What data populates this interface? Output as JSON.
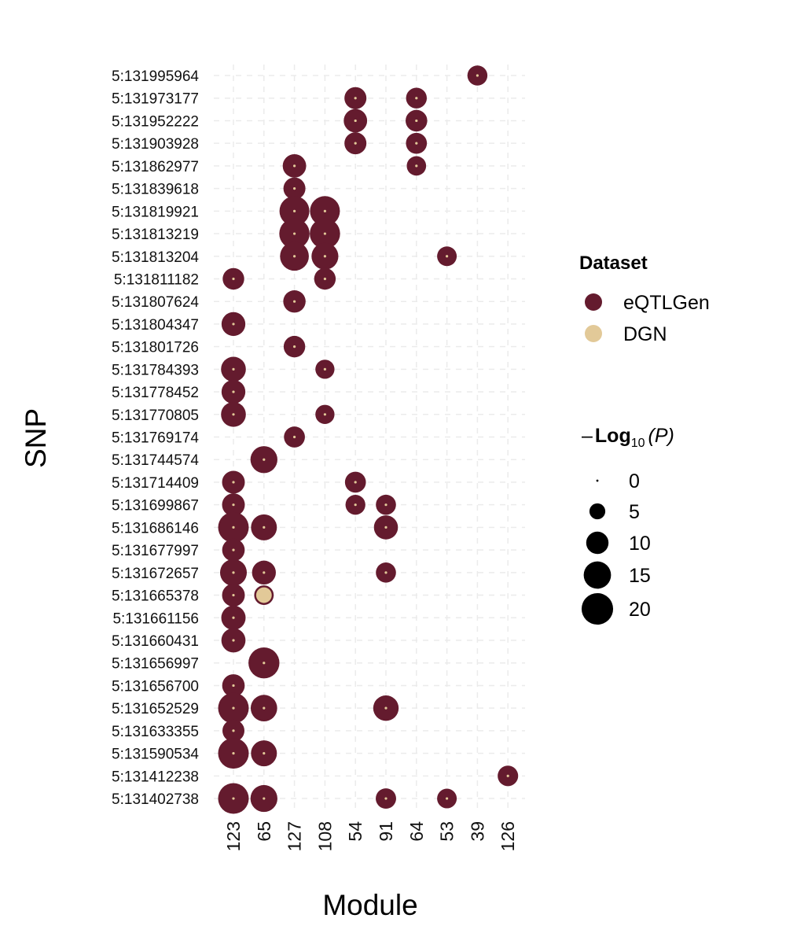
{
  "chart_data": {
    "type": "scatter",
    "xlabel": "Module",
    "ylabel": "SNP",
    "x_categories": [
      "123",
      "65",
      "127",
      "108",
      "54",
      "91",
      "64",
      "53",
      "39",
      "126"
    ],
    "y_categories_top_to_bottom": [
      "5:131995964",
      "5:131973177",
      "5:131952222",
      "5:131903928",
      "5:131862977",
      "5:131839618",
      "5:131819921",
      "5:131813219",
      "5:131813204",
      "5:131811182",
      "5:131807624",
      "5:131804347",
      "5:131801726",
      "5:131784393",
      "5:131778452",
      "5:131770805",
      "5:131769174",
      "5:131744574",
      "5:131714409",
      "5:131699867",
      "5:131686146",
      "5:131677997",
      "5:131672657",
      "5:131665378",
      "5:131661156",
      "5:131660431",
      "5:131656997",
      "5:131656700",
      "5:131652529",
      "5:131633355",
      "5:131590534",
      "5:131412238",
      "5:131402738"
    ],
    "grid": true,
    "legend_placement": "right",
    "color_legend": {
      "title": "Dataset",
      "entries": [
        {
          "label": "eQTLGen",
          "color": "#641B2E"
        },
        {
          "label": "DGN",
          "color": "#E2C998"
        }
      ]
    },
    "size_legend": {
      "title_prefix": "–",
      "title_bold": "Log",
      "title_sub": "10",
      "title_paren": "(P)",
      "values": [
        0,
        5,
        10,
        15,
        20
      ],
      "labels": [
        "0",
        "5",
        "10",
        "15",
        "20"
      ]
    },
    "center_dot_color": "#E2C998",
    "points": [
      {
        "snp": "5:131995964",
        "module": "39",
        "dataset": "eQTLGen",
        "neglog10p": 8.0
      },
      {
        "snp": "5:131973177",
        "module": "54",
        "dataset": "eQTLGen",
        "neglog10p": 9.7
      },
      {
        "snp": "5:131973177",
        "module": "64",
        "dataset": "eQTLGen",
        "neglog10p": 8.6
      },
      {
        "snp": "5:131952222",
        "module": "54",
        "dataset": "eQTLGen",
        "neglog10p": 11.0
      },
      {
        "snp": "5:131952222",
        "module": "64",
        "dataset": "eQTLGen",
        "neglog10p": 9.4
      },
      {
        "snp": "5:131903928",
        "module": "54",
        "dataset": "eQTLGen",
        "neglog10p": 9.7
      },
      {
        "snp": "5:131903928",
        "module": "64",
        "dataset": "eQTLGen",
        "neglog10p": 8.8
      },
      {
        "snp": "5:131862977",
        "module": "127",
        "dataset": "eQTLGen",
        "neglog10p": 11.0
      },
      {
        "snp": "5:131862977",
        "module": "64",
        "dataset": "eQTLGen",
        "neglog10p": 7.5
      },
      {
        "snp": "5:131839618",
        "module": "127",
        "dataset": "eQTLGen",
        "neglog10p": 9.7
      },
      {
        "snp": "5:131819921",
        "module": "127",
        "dataset": "eQTLGen",
        "neglog10p": 18.0
      },
      {
        "snp": "5:131819921",
        "module": "108",
        "dataset": "eQTLGen",
        "neglog10p": 18.0
      },
      {
        "snp": "5:131813219",
        "module": "127",
        "dataset": "eQTLGen",
        "neglog10p": 18.5
      },
      {
        "snp": "5:131813219",
        "module": "108",
        "dataset": "eQTLGen",
        "neglog10p": 18.5
      },
      {
        "snp": "5:131813204",
        "module": "127",
        "dataset": "eQTLGen",
        "neglog10p": 16.7
      },
      {
        "snp": "5:131813204",
        "module": "108",
        "dataset": "eQTLGen",
        "neglog10p": 14.5
      },
      {
        "snp": "5:131813204",
        "module": "53",
        "dataset": "eQTLGen",
        "neglog10p": 7.7
      },
      {
        "snp": "5:131811182",
        "module": "123",
        "dataset": "eQTLGen",
        "neglog10p": 9.3
      },
      {
        "snp": "5:131811182",
        "module": "108",
        "dataset": "eQTLGen",
        "neglog10p": 9.3
      },
      {
        "snp": "5:131807624",
        "module": "127",
        "dataset": "eQTLGen",
        "neglog10p": 10.0
      },
      {
        "snp": "5:131804347",
        "module": "123",
        "dataset": "eQTLGen",
        "neglog10p": 11.4
      },
      {
        "snp": "5:131801726",
        "module": "127",
        "dataset": "eQTLGen",
        "neglog10p": 9.3
      },
      {
        "snp": "5:131784393",
        "module": "123",
        "dataset": "eQTLGen",
        "neglog10p": 12.4
      },
      {
        "snp": "5:131784393",
        "module": "108",
        "dataset": "eQTLGen",
        "neglog10p": 7.3
      },
      {
        "snp": "5:131778452",
        "module": "123",
        "dataset": "eQTLGen",
        "neglog10p": 11.4
      },
      {
        "snp": "5:131770805",
        "module": "123",
        "dataset": "eQTLGen",
        "neglog10p": 12.4
      },
      {
        "snp": "5:131770805",
        "module": "108",
        "dataset": "eQTLGen",
        "neglog10p": 7.3
      },
      {
        "snp": "5:131769174",
        "module": "127",
        "dataset": "eQTLGen",
        "neglog10p": 8.8
      },
      {
        "snp": "5:131744574",
        "module": "65",
        "dataset": "eQTLGen",
        "neglog10p": 14.6
      },
      {
        "snp": "5:131714409",
        "module": "123",
        "dataset": "eQTLGen",
        "neglog10p": 10.4
      },
      {
        "snp": "5:131714409",
        "module": "54",
        "dataset": "eQTLGen",
        "neglog10p": 8.8
      },
      {
        "snp": "5:131699867",
        "module": "123",
        "dataset": "eQTLGen",
        "neglog10p": 10.4
      },
      {
        "snp": "5:131699867",
        "module": "54",
        "dataset": "eQTLGen",
        "neglog10p": 7.9
      },
      {
        "snp": "5:131699867",
        "module": "91",
        "dataset": "eQTLGen",
        "neglog10p": 8.1
      },
      {
        "snp": "5:131686146",
        "module": "123",
        "dataset": "eQTLGen",
        "neglog10p": 18.9
      },
      {
        "snp": "5:131686146",
        "module": "65",
        "dataset": "eQTLGen",
        "neglog10p": 13.5
      },
      {
        "snp": "5:131686146",
        "module": "91",
        "dataset": "eQTLGen",
        "neglog10p": 11.6
      },
      {
        "snp": "5:131677997",
        "module": "123",
        "dataset": "eQTLGen",
        "neglog10p": 10.2
      },
      {
        "snp": "5:131672657",
        "module": "123",
        "dataset": "eQTLGen",
        "neglog10p": 14.4
      },
      {
        "snp": "5:131672657",
        "module": "65",
        "dataset": "eQTLGen",
        "neglog10p": 11.4
      },
      {
        "snp": "5:131672657",
        "module": "91",
        "dataset": "eQTLGen",
        "neglog10p": 8.1
      },
      {
        "snp": "5:131665378",
        "module": "123",
        "dataset": "eQTLGen",
        "neglog10p": 10.4
      },
      {
        "snp": "5:131665378",
        "module": "65",
        "dataset": "DGN",
        "neglog10p": 7.9
      },
      {
        "snp": "5:131661156",
        "module": "123",
        "dataset": "eQTLGen",
        "neglog10p": 11.9
      },
      {
        "snp": "5:131660431",
        "module": "123",
        "dataset": "eQTLGen",
        "neglog10p": 11.7
      },
      {
        "snp": "5:131656997",
        "module": "65",
        "dataset": "eQTLGen",
        "neglog10p": 19.3
      },
      {
        "snp": "5:131656700",
        "module": "123",
        "dataset": "eQTLGen",
        "neglog10p": 10.2
      },
      {
        "snp": "5:131652529",
        "module": "123",
        "dataset": "eQTLGen",
        "neglog10p": 18.9
      },
      {
        "snp": "5:131652529",
        "module": "65",
        "dataset": "eQTLGen",
        "neglog10p": 14.1
      },
      {
        "snp": "5:131652529",
        "module": "91",
        "dataset": "eQTLGen",
        "neglog10p": 13.0
      },
      {
        "snp": "5:131633355",
        "module": "123",
        "dataset": "eQTLGen",
        "neglog10p": 9.7
      },
      {
        "snp": "5:131590534",
        "module": "123",
        "dataset": "eQTLGen",
        "neglog10p": 18.9
      },
      {
        "snp": "5:131590534",
        "module": "65",
        "dataset": "eQTLGen",
        "neglog10p": 13.5
      },
      {
        "snp": "5:131412238",
        "module": "126",
        "dataset": "eQTLGen",
        "neglog10p": 8.4
      },
      {
        "snp": "5:131402738",
        "module": "123",
        "dataset": "eQTLGen",
        "neglog10p": 18.9
      },
      {
        "snp": "5:131402738",
        "module": "65",
        "dataset": "eQTLGen",
        "neglog10p": 14.6
      },
      {
        "snp": "5:131402738",
        "module": "91",
        "dataset": "eQTLGen",
        "neglog10p": 8.3
      },
      {
        "snp": "5:131402738",
        "module": "53",
        "dataset": "eQTLGen",
        "neglog10p": 7.7
      }
    ]
  }
}
